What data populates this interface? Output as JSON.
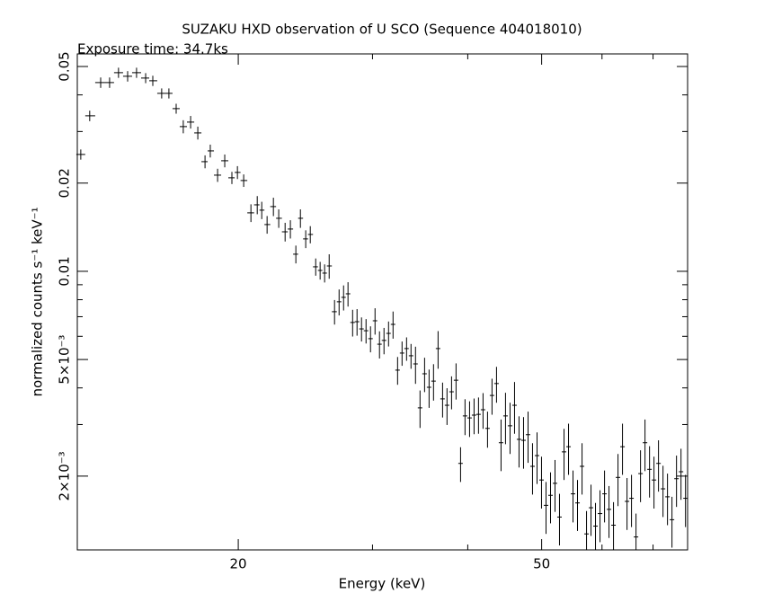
{
  "chart_data": {
    "type": "errorbar",
    "title": "SUZAKU HXD observation of U SCO (Sequence 404018010)",
    "subtitle": "Exposure time: 34.7ks",
    "xlabel": "Energy (keV)",
    "ylabel": "normalized counts s⁻¹ keV⁻¹",
    "xscale": "log",
    "yscale": "log",
    "color": "#000000",
    "xlim": [
      12.3,
      77.7
    ],
    "ylim": [
      0.00112,
      0.0552
    ],
    "xticks": [
      20,
      50
    ],
    "xminorticks": [
      30,
      40,
      60,
      70
    ],
    "yticks": [
      {
        "value": 0.002,
        "label": "2×10⁻³"
      },
      {
        "value": 0.005,
        "label": "5×10⁻³"
      },
      0.01,
      0.02,
      0.05
    ],
    "yminorticks": [
      0.003,
      0.004,
      0.006,
      0.007,
      0.008,
      0.009,
      0.03,
      0.04
    ],
    "x": [
      12.43,
      12.77,
      13.2,
      13.56,
      13.93,
      14.32,
      14.71,
      15.12,
      15.45,
      15.87,
      16.22,
      16.58,
      16.94,
      17.32,
      17.7,
      18.09,
      18.38,
      18.79,
      19.2,
      19.62,
      19.95,
      20.33,
      20.78,
      21.18,
      21.47,
      21.82,
      22.24,
      22.6,
      23.04,
      23.41,
      23.8,
      24.13,
      24.52,
      24.86,
      25.27,
      25.61,
      25.96,
      26.32,
      26.75,
      27.12,
      27.49,
      27.86,
      28.25,
      28.63,
      29.02,
      29.42,
      29.82,
      30.23,
      30.64,
      31.06,
      31.49,
      31.92,
      32.36,
      32.8,
      33.25,
      33.7,
      34.16,
      34.63,
      35.11,
      35.59,
      36.07,
      36.57,
      37.07,
      37.57,
      38.09,
      38.61,
      39.14,
      39.67,
      40.22,
      40.77,
      41.32,
      41.89,
      42.46,
      43.04,
      43.63,
      44.23,
      44.83,
      45.45,
      46.07,
      46.7,
      47.34,
      47.99,
      48.64,
      49.31,
      49.98,
      50.67,
      51.36,
      52.06,
      52.77,
      53.5,
      54.23,
      54.97,
      55.72,
      56.49,
      57.26,
      58.04,
      58.83,
      59.64,
      60.46,
      61.28,
      62.12,
      62.97,
      63.83,
      64.71,
      65.59,
      66.49,
      67.4,
      68.32,
      69.26,
      70.2,
      71.16,
      72.14,
      73.12,
      74.12,
      75.14,
      76.17,
      77.21
    ],
    "values": [
      0.02505,
      0.03394,
      0.04407,
      0.04407,
      0.04763,
      0.04631,
      0.04763,
      0.04566,
      0.0447,
      0.04049,
      0.04049,
      0.03591,
      0.03118,
      0.0323,
      0.02967,
      0.02367,
      0.02576,
      0.02129,
      0.02384,
      0.02085,
      0.02175,
      0.02041,
      0.01583,
      0.01686,
      0.01617,
      0.01444,
      0.01663,
      0.01517,
      0.01364,
      0.01394,
      0.01144,
      0.01517,
      0.0129,
      0.01336,
      0.01036,
      0.01007,
      0.00986,
      0.01043,
      0.00728,
      0.00787,
      0.00815,
      0.00838,
      0.00669,
      0.00673,
      0.00636,
      0.00627,
      0.00589,
      0.00678,
      0.00564,
      0.00581,
      0.00614,
      0.00659,
      0.0046,
      0.00526,
      0.00545,
      0.00515,
      0.00483,
      0.00342,
      0.00447,
      0.00402,
      0.00422,
      0.00545,
      0.00367,
      0.00349,
      0.00388,
      0.00425,
      0.00221,
      0.00321,
      0.00316,
      0.00323,
      0.00325,
      0.00337,
      0.00291,
      0.00377,
      0.00414,
      0.0026,
      0.00321,
      0.00297,
      0.00349,
      0.00267,
      0.00265,
      0.00277,
      0.00216,
      0.00235,
      0.00194,
      0.00159,
      0.00172,
      0.00189,
      0.00145,
      0.00242,
      0.00252,
      0.00174,
      0.00162,
      0.00216,
      0.00127,
      0.00156,
      0.00135,
      0.00149,
      0.00174,
      0.00154,
      0.00136,
      0.00198,
      0.00252,
      0.00164,
      0.00168,
      0.00124,
      0.00204,
      0.0026,
      0.00211,
      0.00194,
      0.00221,
      0.00181,
      0.0017,
      0.00142,
      0.00196,
      0.00207,
      0.00168
    ],
    "yerr": [
      0.001,
      0.0014,
      0.0018,
      0.0018,
      0.0019,
      0.0019,
      0.0019,
      0.0018,
      0.0018,
      0.0016,
      0.0016,
      0.0014,
      0.0016,
      0.0016,
      0.0015,
      0.0012,
      0.0013,
      0.0011,
      0.0012,
      0.001,
      0.0011,
      0.001,
      0.0011,
      0.0012,
      0.0011,
      0.001,
      0.0012,
      0.0011,
      0.001,
      0.001,
      0.0008,
      0.0011,
      0.0009,
      0.0009,
      0.0007,
      0.0007,
      0.0007,
      0.001,
      0.0007,
      0.0008,
      0.0008,
      0.0008,
      0.0007,
      0.0007,
      0.0006,
      0.0006,
      0.0006,
      0.0007,
      0.0006,
      0.0006,
      0.0006,
      0.0007,
      0.0005,
      0.0005,
      0.0005,
      0.0005,
      0.0007,
      0.0005,
      0.0006,
      0.0006,
      0.0006,
      0.0008,
      0.0005,
      0.0005,
      0.0005,
      0.0006,
      0.0003,
      0.00045,
      0.00044,
      0.00045,
      0.00046,
      0.00047,
      0.00041,
      0.00053,
      0.00058,
      0.00052,
      0.00064,
      0.00059,
      0.0007,
      0.00053,
      0.00053,
      0.00055,
      0.00043,
      0.00047,
      0.00039,
      0.00032,
      0.00034,
      0.00038,
      0.00029,
      0.00048,
      0.0005,
      0.00035,
      0.00032,
      0.00043,
      0.00025,
      0.00031,
      0.00027,
      0.0003,
      0.00035,
      0.00031,
      0.00027,
      0.0004,
      0.0005,
      0.00033,
      0.00034,
      0.00025,
      0.00041,
      0.00052,
      0.00042,
      0.00039,
      0.00044,
      0.00036,
      0.00034,
      0.00028,
      0.00039,
      0.00041,
      0.00034
    ]
  }
}
